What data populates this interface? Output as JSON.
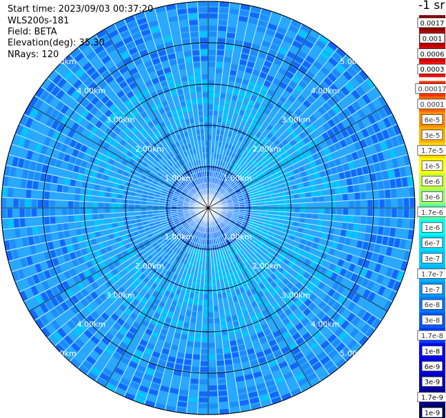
{
  "info": {
    "start_time": "Start time: 2023/09/03 00:37:20",
    "instrument": "WLS200s-181",
    "field": "Field: BETA",
    "elevation": "Elevation(deg): 35.30",
    "nrays": "NRays: 120"
  },
  "colorbar": {
    "unit": "-1 sr",
    "labels": [
      "0.0017",
      "0.001",
      "0.0006",
      "0.0003",
      "0.00017",
      "0.0001",
      "6e-5",
      "3e-5",
      "1.7e-5",
      "1e-5",
      "6e-6",
      "3e-6",
      "1.7e-6",
      "1e-6",
      "6e-7",
      "3e-7",
      "1.7e-7",
      "1e-7",
      "6e-8",
      "3e-8",
      "1.7e-8",
      "1e-8",
      "6e-9",
      "3e-9",
      "1.7e-9",
      "1e-9"
    ],
    "colors": [
      "#8b0000",
      "#b30000",
      "#d40000",
      "#f01010",
      "#ff3300",
      "#ff6600",
      "#ff8c00",
      "#ffb000",
      "#ffd400",
      "#ffff00",
      "#c8ff38",
      "#96ff68",
      "#50ffa8",
      "#00fff0",
      "#00dcff",
      "#00c8ff",
      "#00b4ff",
      "#0096ff",
      "#0078ff",
      "#005aff",
      "#003cff",
      "#0000ff",
      "#0000d8",
      "#0000b0",
      "#000088",
      "#000060"
    ]
  },
  "chart_data": {
    "type": "heatmap",
    "projection": "polar PPI",
    "field": "BETA",
    "nrays": 120,
    "range_rings_km": [
      1,
      2,
      3,
      4,
      5
    ],
    "ring_labels": [
      "1.00km",
      "2.00km",
      "3.00km",
      "4.00km",
      "5.00km"
    ],
    "max_range_km": 5.0,
    "spokes_deg": [
      0,
      30,
      60,
      90,
      120,
      150,
      180,
      210,
      240,
      270,
      300,
      330
    ],
    "value_range": [
      1e-09,
      0.0017
    ],
    "dominant_values": [
      "1e-8",
      "1.7e-7",
      "1e-6"
    ],
    "colormap_scale": "log"
  }
}
